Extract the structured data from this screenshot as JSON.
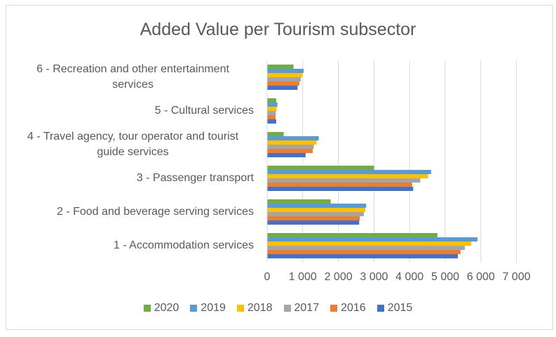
{
  "chart_data": {
    "type": "bar",
    "orientation": "horizontal",
    "title": "Added Value per Tourism subsector",
    "xlabel": "",
    "ylabel": "",
    "xlim": [
      0,
      7000
    ],
    "x_ticks": [
      0,
      1000,
      2000,
      3000,
      4000,
      5000,
      6000,
      7000
    ],
    "x_tick_labels": [
      "0",
      "1 000",
      "2 000",
      "3 000",
      "4 000",
      "5 000",
      "6 000",
      "7 000"
    ],
    "grid": true,
    "legend_position": "bottom",
    "categories": [
      [
        "1 - Accommodation services"
      ],
      [
        "2 - Food and beverage serving services"
      ],
      [
        "3 - Passenger transport"
      ],
      [
        "4 - Travel agency, tour operator and tourist",
        "guide services"
      ],
      [
        "5 - Cultural services"
      ],
      [
        "6 - Recreation and other entertainment",
        "services"
      ]
    ],
    "series": [
      {
        "name": "2020",
        "color": "#70AD47",
        "values": [
          4780,
          1785,
          3000,
          465,
          255,
          740
        ]
      },
      {
        "name": "2019",
        "color": "#5B9BD5",
        "values": [
          5905,
          2780,
          4605,
          1450,
          290,
          1025
        ]
      },
      {
        "name": "2018",
        "color": "#FFC000",
        "values": [
          5730,
          2755,
          4520,
          1390,
          270,
          985
        ]
      },
      {
        "name": "2017",
        "color": "#A5A5A5",
        "values": [
          5550,
          2715,
          4300,
          1310,
          245,
          945
        ]
      },
      {
        "name": "2016",
        "color": "#ED7D31",
        "values": [
          5430,
          2600,
          4070,
          1280,
          235,
          905
        ]
      },
      {
        "name": "2015",
        "color": "#4472C4",
        "values": [
          5355,
          2585,
          4100,
          1080,
          255,
          855
        ]
      }
    ]
  }
}
